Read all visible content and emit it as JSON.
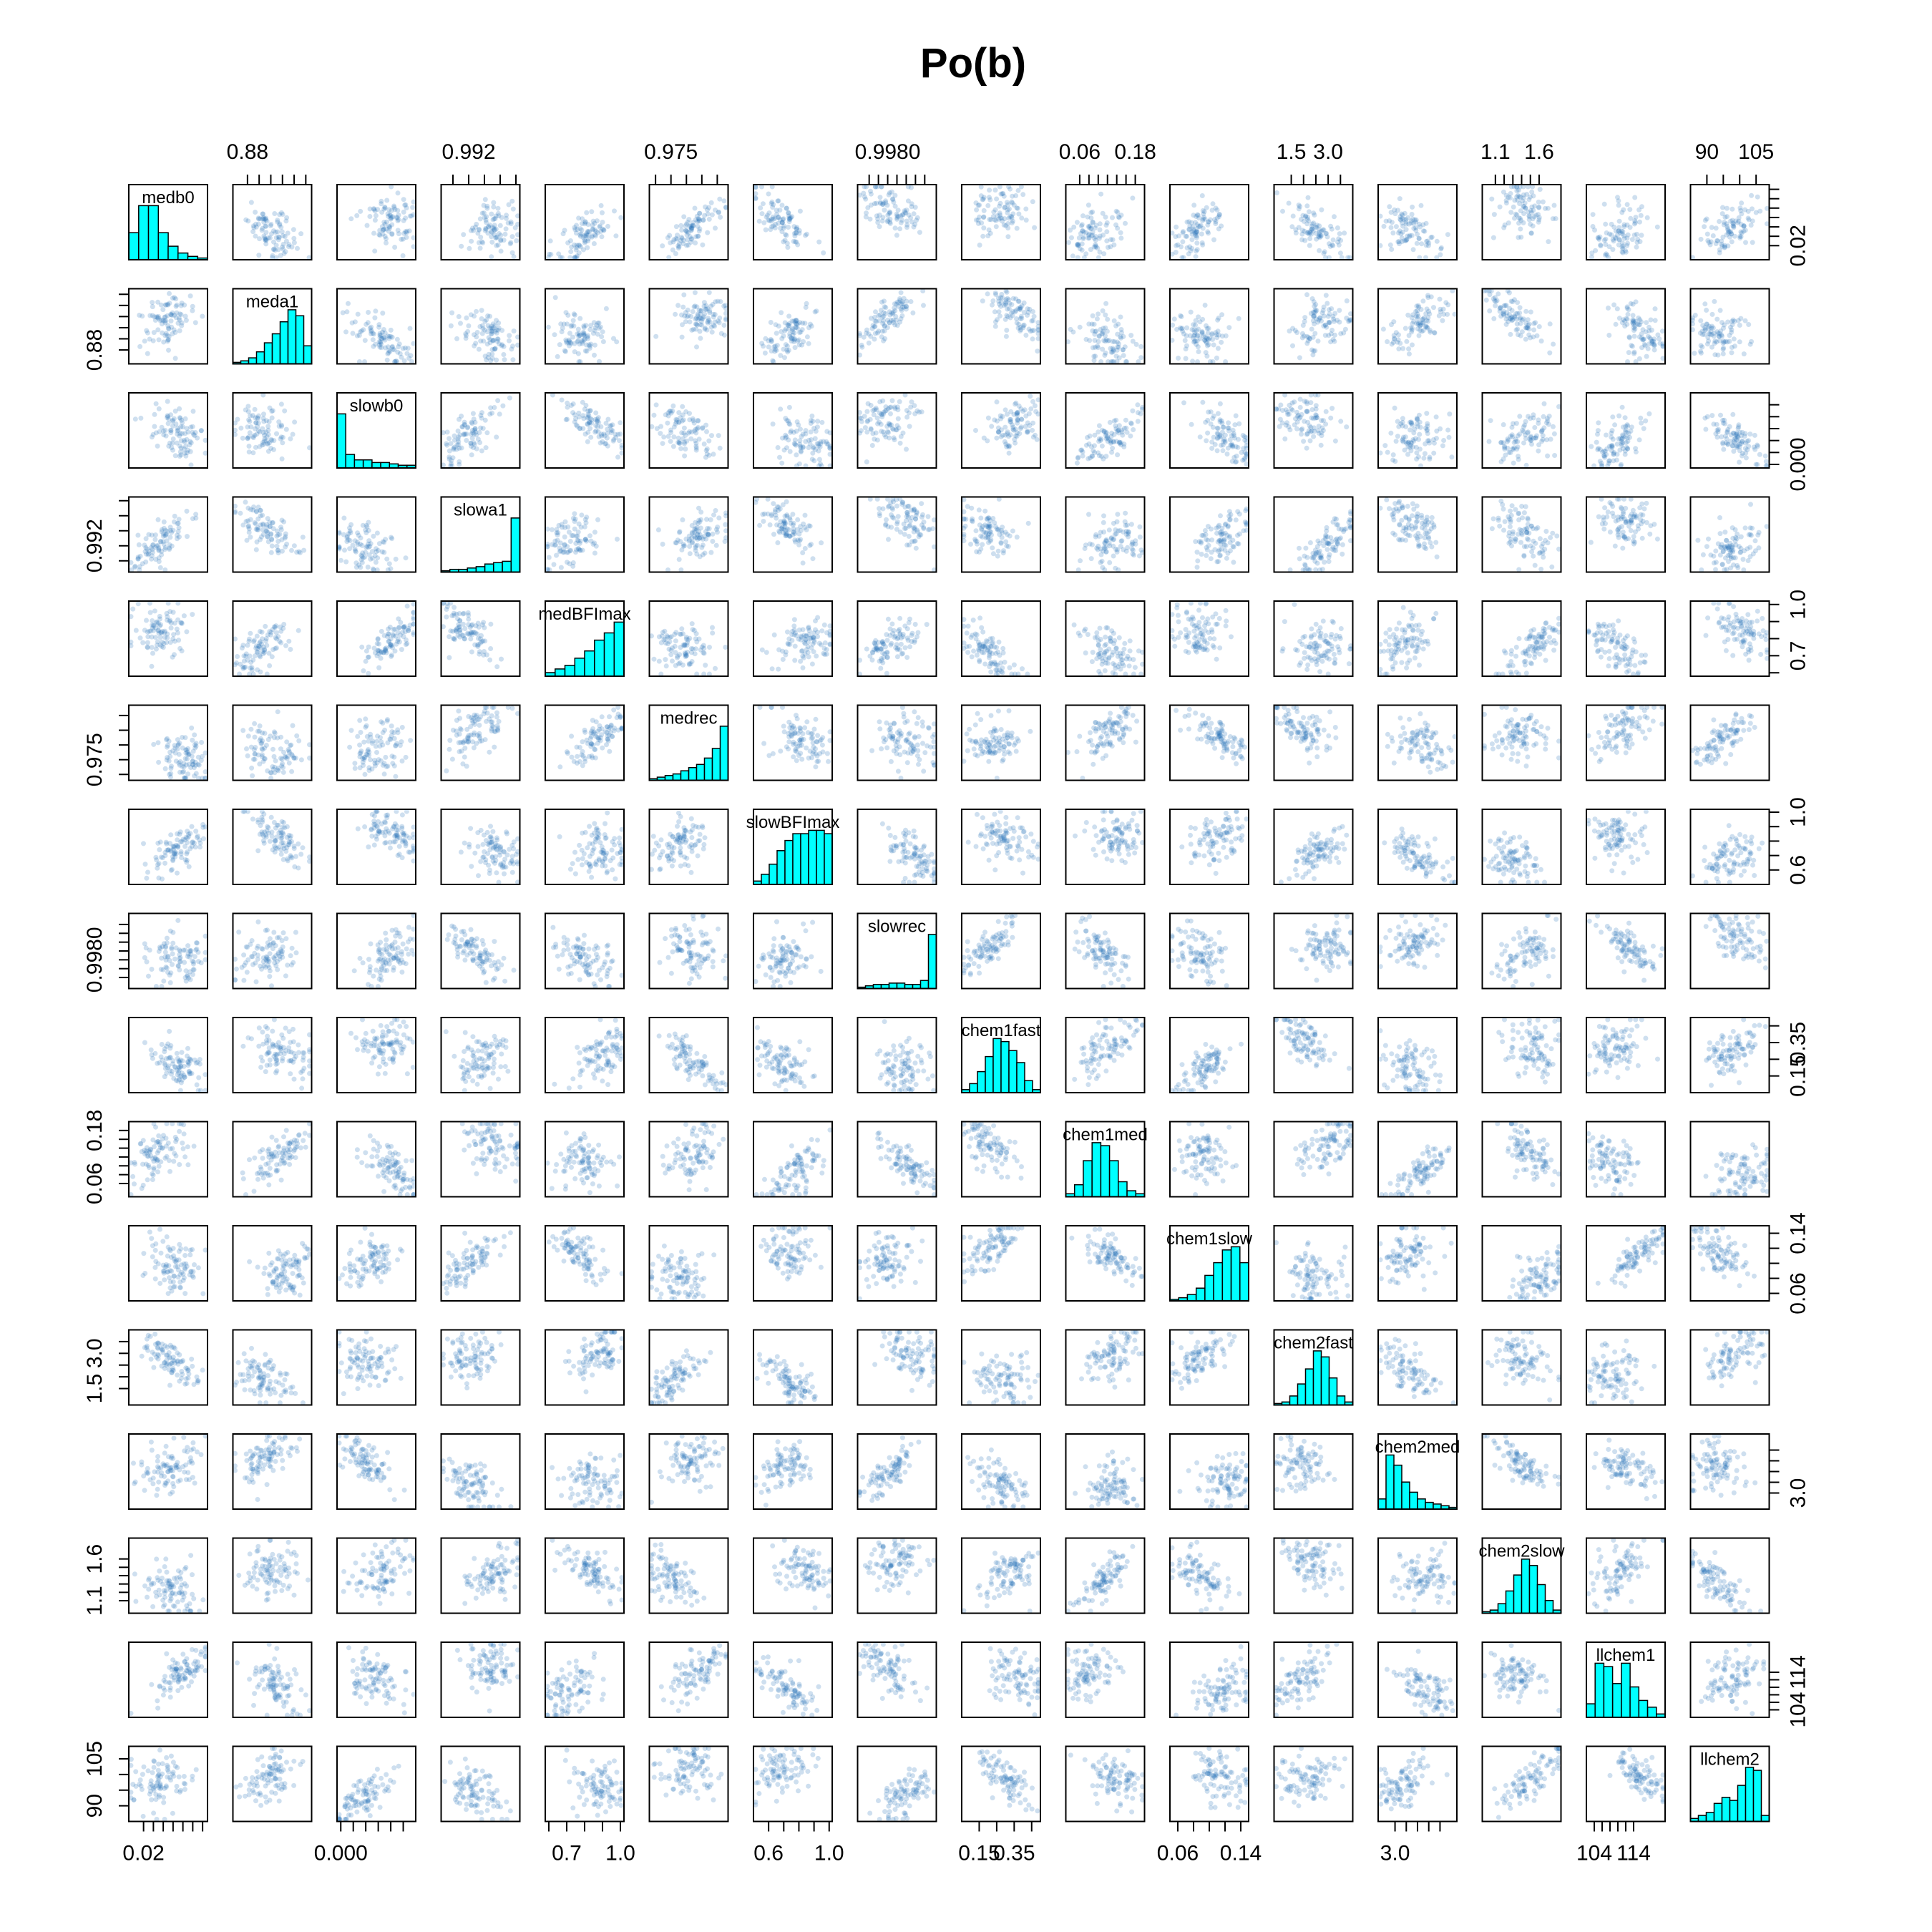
{
  "chart_data": {
    "type": "scatter",
    "subtype": "scatterplot-matrix",
    "title": "Po(b)",
    "diagonal": "histogram",
    "colors": {
      "points": "#1f6fb4",
      "histogram_fill": "#00ffff",
      "axes": "#000000"
    },
    "variables": [
      {
        "name": "medb0",
        "label": "medb0",
        "range": [
          0.005,
          0.085
        ],
        "ticks": [
          0.02,
          0.03,
          0.04,
          0.05,
          0.06,
          0.07,
          0.08
        ],
        "tick_labels": [
          "0.02"
        ],
        "hist": [
          8,
          16,
          16,
          8,
          4,
          2,
          1,
          0.5
        ]
      },
      {
        "name": "meda1",
        "label": "meda1",
        "range": [
          0.855,
          0.99
        ],
        "ticks": [
          0.88,
          0.9,
          0.92,
          0.94,
          0.96,
          0.98
        ],
        "tick_labels": [
          "0.88"
        ],
        "hist": [
          0.5,
          1,
          2,
          4,
          7,
          10,
          14,
          18,
          16,
          6
        ]
      },
      {
        "name": "slowb0",
        "label": "slowb0",
        "range": [
          -0.003,
          0.06
        ],
        "ticks": [
          0.0,
          0.01,
          0.02,
          0.03,
          0.04,
          0.05
        ],
        "tick_labels": [
          "0.000"
        ],
        "hist": [
          20,
          5,
          3,
          3,
          2,
          2,
          1.5,
          1,
          1
        ]
      },
      {
        "name": "slowa1",
        "label": "slowa1",
        "range": [
          0.9885,
          0.9985
        ],
        "ticks": [
          0.99,
          0.992,
          0.994,
          0.996,
          0.998
        ],
        "tick_labels": [
          "0.992"
        ],
        "hist": [
          0.5,
          1,
          1,
          1.5,
          2,
          3,
          3.5,
          4,
          20
        ]
      },
      {
        "name": "medBFImax",
        "label": "medBFImax",
        "range": [
          0.58,
          1.02
        ],
        "ticks": [
          0.6,
          0.7,
          0.8,
          0.9,
          1.0
        ],
        "tick_labels": [
          "0.7",
          "1.0"
        ],
        "hist": [
          1,
          2,
          3,
          5,
          7,
          10,
          12,
          15
        ]
      },
      {
        "name": "medrec",
        "label": "medrec",
        "range": [
          0.968,
          0.9935
        ],
        "ticks": [
          0.97,
          0.975,
          0.98,
          0.985,
          0.99
        ],
        "tick_labels": [
          "0.975"
        ],
        "hist": [
          0.5,
          1,
          1.5,
          2,
          3,
          4,
          5,
          7,
          10,
          17
        ]
      },
      {
        "name": "slowBFImax",
        "label": "slowBFImax",
        "range": [
          0.5,
          1.02
        ],
        "ticks": [
          0.6,
          0.7,
          0.8,
          0.9,
          1.0
        ],
        "tick_labels": [
          "0.6",
          "1.0"
        ],
        "hist": [
          1,
          3,
          6,
          10,
          13,
          15,
          15,
          16,
          16,
          15
        ]
      },
      {
        "name": "slowrec",
        "label": "slowrec",
        "range": [
          0.99735,
          0.99905
        ],
        "ticks": [
          0.9976,
          0.9978,
          0.998,
          0.9982,
          0.9984,
          0.9986,
          0.9988
        ],
        "tick_labels": [
          "0.9980"
        ],
        "hist": [
          0.5,
          1,
          1.5,
          1.5,
          2,
          2,
          1.5,
          1.5,
          3,
          20
        ]
      },
      {
        "name": "chem1fast",
        "label": "chem1fast",
        "range": [
          0.05,
          0.5
        ],
        "ticks": [
          0.15,
          0.25,
          0.35,
          0.45
        ],
        "tick_labels": [
          "0.15",
          "0.35"
        ],
        "hist": [
          1,
          3,
          7,
          12,
          18,
          17,
          14,
          10,
          4,
          1
        ]
      },
      {
        "name": "chem1med",
        "label": "chem1med",
        "range": [
          0.03,
          0.2
        ],
        "ticks": [
          0.06,
          0.08,
          0.1,
          0.12,
          0.14,
          0.16,
          0.18
        ],
        "tick_labels": [
          "0.06",
          "0.18"
        ],
        "hist": [
          1,
          4,
          12,
          18,
          17,
          12,
          5,
          2,
          1
        ]
      },
      {
        "name": "chem1slow",
        "label": "chem1slow",
        "range": [
          0.05,
          0.15
        ],
        "ticks": [
          0.06,
          0.08,
          0.1,
          0.12,
          0.14
        ],
        "tick_labels": [
          "0.06",
          "0.14"
        ],
        "hist": [
          0.5,
          1,
          2,
          4,
          8,
          12,
          16,
          17,
          12
        ]
      },
      {
        "name": "chem2fast",
        "label": "chem2fast",
        "range": [
          0.8,
          4.0
        ],
        "ticks": [
          1.5,
          2.0,
          2.5,
          3.0,
          3.5
        ],
        "tick_labels": [
          "1.5",
          "3.0"
        ],
        "hist": [
          0.5,
          1,
          3,
          7,
          12,
          18,
          16,
          9,
          3,
          1
        ]
      },
      {
        "name": "chem2med",
        "label": "chem2med",
        "range": [
          1.5,
          8.5
        ],
        "ticks": [
          3.0,
          4.0,
          5.0,
          6.0,
          7.0
        ],
        "tick_labels": [
          "3.0"
        ],
        "hist": [
          3,
          16,
          13,
          8,
          5,
          3,
          2,
          1.5,
          1,
          0.5
        ]
      },
      {
        "name": "chem2slow",
        "label": "chem2slow",
        "range": [
          0.95,
          1.85
        ],
        "ticks": [
          1.1,
          1.2,
          1.3,
          1.4,
          1.5,
          1.6
        ],
        "tick_labels": [
          "1.1",
          "1.6"
        ],
        "hist": [
          0.5,
          1,
          3,
          7,
          12,
          17,
          15,
          9,
          4,
          1
        ]
      },
      {
        "name": "llchem1",
        "label": "llchem1",
        "range": [
          102,
          122
        ],
        "ticks": [
          104,
          106,
          108,
          110,
          112,
          114
        ],
        "tick_labels": [
          "104",
          "114"
        ],
        "hist": [
          4,
          16,
          15,
          10,
          16,
          9,
          5,
          3,
          1
        ]
      },
      {
        "name": "llchem2",
        "label": "llchem2",
        "range": [
          85,
          109
        ],
        "ticks": [
          90,
          95,
          100,
          105
        ],
        "tick_labels": [
          "90",
          "105"
        ],
        "hist": [
          1,
          2,
          3,
          6,
          8,
          7,
          12,
          18,
          17,
          2
        ]
      }
    ],
    "axes": {
      "top": [
        1,
        3,
        5,
        7,
        9,
        11,
        13,
        15
      ],
      "bottom": [
        0,
        2,
        4,
        6,
        8,
        10,
        12,
        14
      ],
      "left": [
        1,
        3,
        5,
        7,
        9,
        11,
        13,
        15
      ],
      "right": [
        0,
        2,
        4,
        6,
        8,
        10,
        12,
        14
      ]
    }
  }
}
